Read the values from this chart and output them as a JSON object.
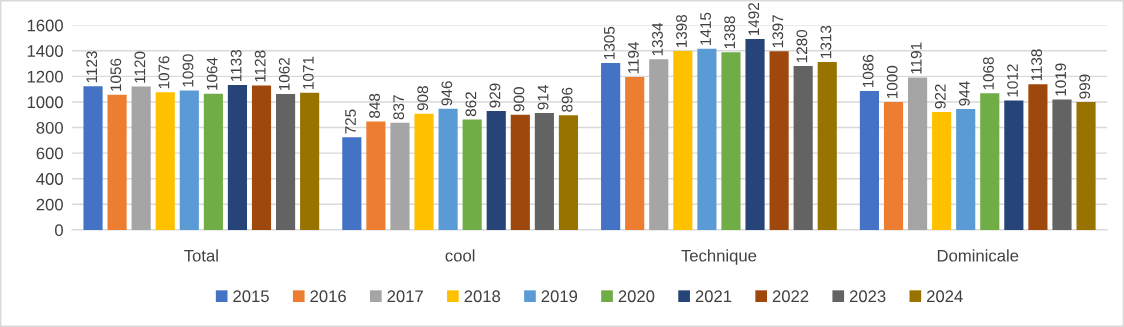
{
  "chart_data": {
    "type": "bar",
    "categories": [
      "Total",
      "cool",
      "Technique",
      "Dominicale"
    ],
    "series": [
      {
        "name": "2015",
        "color": "#4472c4",
        "values": [
          1123,
          725,
          1305,
          1086
        ]
      },
      {
        "name": "2016",
        "color": "#ed7d31",
        "values": [
          1056,
          848,
          1194,
          1000
        ]
      },
      {
        "name": "2017",
        "color": "#a5a5a5",
        "values": [
          1120,
          837,
          1334,
          1191
        ]
      },
      {
        "name": "2018",
        "color": "#ffc000",
        "values": [
          1076,
          908,
          1398,
          922
        ]
      },
      {
        "name": "2019",
        "color": "#5b9bd5",
        "values": [
          1090,
          946,
          1415,
          944
        ]
      },
      {
        "name": "2020",
        "color": "#70ad47",
        "values": [
          1064,
          862,
          1388,
          1068
        ]
      },
      {
        "name": "2021",
        "color": "#264478",
        "values": [
          1133,
          929,
          1492,
          1012
        ]
      },
      {
        "name": "2022",
        "color": "#9e480e",
        "values": [
          1128,
          900,
          1397,
          1138
        ]
      },
      {
        "name": "2023",
        "color": "#636363",
        "values": [
          1062,
          914,
          1280,
          1019
        ]
      },
      {
        "name": "2024",
        "color": "#997300",
        "values": [
          1071,
          896,
          1313,
          999
        ]
      }
    ],
    "ylim": [
      0,
      1600
    ],
    "yticks": [
      0,
      200,
      400,
      600,
      800,
      1000,
      1200,
      1400,
      1600
    ],
    "grid": "y",
    "legend": "bottom",
    "data_labels": true
  }
}
